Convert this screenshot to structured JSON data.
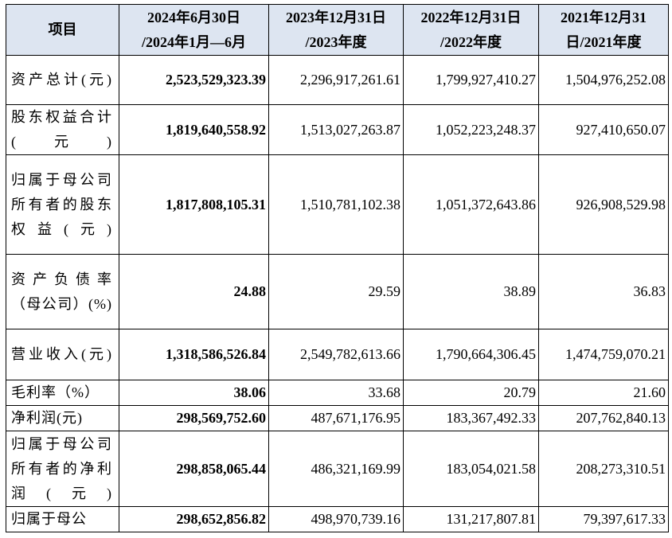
{
  "header": {
    "item": "项目",
    "cols": [
      {
        "line1": "2024年6月30日",
        "line2": "/2024年1月—6月"
      },
      {
        "line1": "2023年12月31日",
        "line2": "/2023年度"
      },
      {
        "line1": "2022年12月31日",
        "line2": "/2022年度"
      },
      {
        "line1": "2021年12月31",
        "line2": "日/2021年度"
      }
    ]
  },
  "rows": [
    {
      "label": "资产总计(元)",
      "values": [
        "2,523,529,323.39",
        "2,296,917,261.61",
        "1,799,927,410.27",
        "1,504,976,252.08"
      ]
    },
    {
      "label": "股东权益合计(元)",
      "values": [
        "1,819,640,558.92",
        "1,513,027,263.87",
        "1,052,223,248.37",
        "927,410,650.07"
      ]
    },
    {
      "label": "归属于母公司所有者的股东权益(元)",
      "values": [
        "1,817,808,105.31",
        "1,510,781,102.38",
        "1,051,372,643.86",
        "926,908,529.98"
      ]
    },
    {
      "label": "资产负债率（母公司）(%)",
      "values": [
        "24.88",
        "29.59",
        "38.89",
        "36.83"
      ]
    },
    {
      "label": "营业收入(元)",
      "values": [
        "1,318,586,526.84",
        "2,549,782,613.66",
        "1,790,664,306.45",
        "1,474,759,070.21"
      ]
    },
    {
      "label": "毛利率（%）",
      "values": [
        "38.06",
        "33.68",
        "20.79",
        "21.60"
      ]
    },
    {
      "label": "净利润(元)",
      "values": [
        "298,569,752.60",
        "487,671,176.95",
        "183,367,492.33",
        "207,762,840.13"
      ]
    },
    {
      "label": "归属于母公司所有者的净利润(元)",
      "values": [
        "298,858,065.44",
        "486,321,169.99",
        "183,054,021.58",
        "208,273,310.51"
      ]
    },
    {
      "label": "归属于母公",
      "values": [
        "298,652,856.82",
        "498,970,739.16",
        "131,217,807.81",
        "79,397,617.33"
      ]
    }
  ]
}
